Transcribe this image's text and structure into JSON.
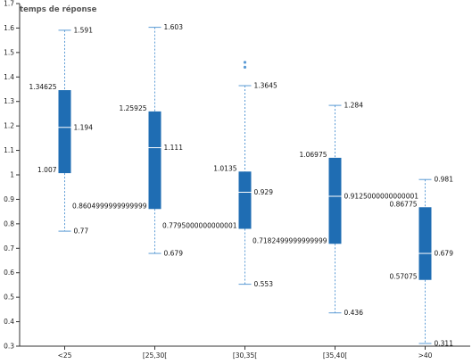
{
  "chart_data": {
    "type": "box",
    "title": "temps de réponse",
    "xlabel": "",
    "ylabel": "",
    "ylim": [
      0.3,
      1.7
    ],
    "yticks": [
      "0.3",
      "0.4",
      "0.5",
      "0.6",
      "0.7",
      "0.8",
      "0.9",
      "1",
      "1.1",
      "1.2",
      "1.3",
      "1.4",
      "1.5",
      "1.6",
      "1.7"
    ],
    "categories": [
      "<25",
      "[25,30[",
      "[30,35[",
      "[35,40[",
      ">40"
    ],
    "colors": {
      "box": "#1f6db3",
      "whisker": "#5b9bd5",
      "median": "#ffffff"
    },
    "boxes": [
      {
        "category": "<25",
        "min": 0.77,
        "q1": 1.007,
        "median": 1.194,
        "q3": 1.34625,
        "max": 1.591,
        "outliers": [],
        "labels": {
          "min": "0.77",
          "q1": "1.007",
          "median": "1.194",
          "q3": "1.34625",
          "max": "1.591"
        }
      },
      {
        "category": "[25,30[",
        "min": 0.679,
        "q1": 0.8604999999999999,
        "median": 1.111,
        "q3": 1.25925,
        "max": 1.603,
        "outliers": [],
        "labels": {
          "min": "0.679",
          "q1": "0.8604999999999999",
          "median": "1.111",
          "q3": "1.25925",
          "max": "1.603"
        }
      },
      {
        "category": "[30,35[",
        "min": 0.553,
        "q1": 0.7795000000000001,
        "median": 0.929,
        "q3": 1.0135,
        "max": 1.3645,
        "outliers": [
          1.44,
          1.46
        ],
        "labels": {
          "min": "0.553",
          "q1": "0.7795000000000001",
          "median": "0.929",
          "q3": "1.0135",
          "max": "1.3645"
        }
      },
      {
        "category": "[35,40[",
        "min": 0.436,
        "q1": 0.7182499999999999,
        "median": 0.9125000000000001,
        "q3": 1.06975,
        "max": 1.284,
        "outliers": [],
        "labels": {
          "min": "0.436",
          "q1": "0.7182499999999999",
          "median": "0.9125000000000001",
          "q3": "1.06975",
          "max": "1.284"
        }
      },
      {
        "category": ">40",
        "min": 0.311,
        "q1": 0.57075,
        "median": 0.679,
        "q3": 0.86775,
        "max": 0.981,
        "outliers": [],
        "labels": {
          "min": "0.311",
          "q1": "0.57075",
          "median": "0.679",
          "q3": "0.86775",
          "max": "0.981"
        }
      }
    ]
  }
}
